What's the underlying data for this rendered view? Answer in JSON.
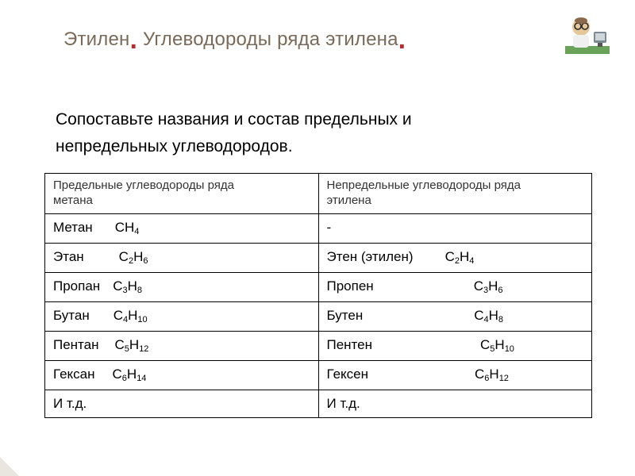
{
  "title_part1": "Этилен",
  "title_part2": " Углеводороды ряда этилена",
  "dot": ".",
  "subtitle_line1": "Сопоставьте названия и состав предельных и",
  "subtitle_line2": "непредельных углеводородов.",
  "table": {
    "header_left_l1": "Предельные углеводороды ряда",
    "header_left_l2": "метана",
    "header_right_l1": "Непредельные углеводороды ряда",
    "header_right_l2": "этилена",
    "rows": [
      {
        "l_name": "Метан",
        "l_gap": 28,
        "l_formula": {
          "base": "CH",
          "s1": "4",
          "mid": "",
          "s2": ""
        },
        "r_name": "-",
        "r_gap": 0,
        "r_formula": null
      },
      {
        "l_name": "Этан",
        "l_gap": 44,
        "l_formula": {
          "base": "C",
          "s1": "2",
          "mid": "H",
          "s2": "6"
        },
        "r_name": "Этен (этилен)",
        "r_gap": 40,
        "r_formula": {
          "base": "C",
          "s1": "2",
          "mid": "H",
          "s2": "4"
        }
      },
      {
        "l_name": "Пропан",
        "l_gap": 16,
        "l_formula": {
          "base": "C",
          "s1": "3",
          "mid": "H",
          "s2": "8"
        },
        "r_name": "Пропен",
        "r_gap": 126,
        "r_formula": {
          "base": "C",
          "s1": "3",
          "mid": "H",
          "s2": "6"
        }
      },
      {
        "l_name": "Бутан",
        "l_gap": 30,
        "l_formula": {
          "base": "C",
          "s1": "4",
          "mid": "H",
          "s2": "10"
        },
        "r_name": "Бутен",
        "r_gap": 140,
        "r_formula": {
          "base": "C",
          "s1": "4",
          "mid": "H",
          "s2": "8"
        }
      },
      {
        "l_name": "Пентан",
        "l_gap": 20,
        "l_formula": {
          "base": "C",
          "s1": "5",
          "mid": "H",
          "s2": "12"
        },
        "r_name": "Пентен",
        "r_gap": 136,
        "r_formula": {
          "base": "C",
          "s1": "5",
          "mid": "H",
          "s2": "10"
        }
      },
      {
        "l_name": "Гексан",
        "l_gap": 22,
        "l_formula": {
          "base": "C",
          "s1": "6",
          "mid": "H",
          "s2": "14"
        },
        "r_name": "Гексен",
        "r_gap": 134,
        "r_formula": {
          "base": "C",
          "s1": "6",
          "mid": "H",
          "s2": "12"
        }
      },
      {
        "l_name": "И т.д.",
        "l_gap": 0,
        "l_formula": null,
        "r_name": "И т.д.",
        "r_gap": 0,
        "r_formula": null
      }
    ]
  },
  "mascot": {
    "skin": "#e6c79c",
    "glasses": "#2a2a2a",
    "coat": "#f0f0f0",
    "desk": "#6aa25a",
    "monitor": "#cfd6da",
    "monitor_body": "#7a8a90"
  }
}
